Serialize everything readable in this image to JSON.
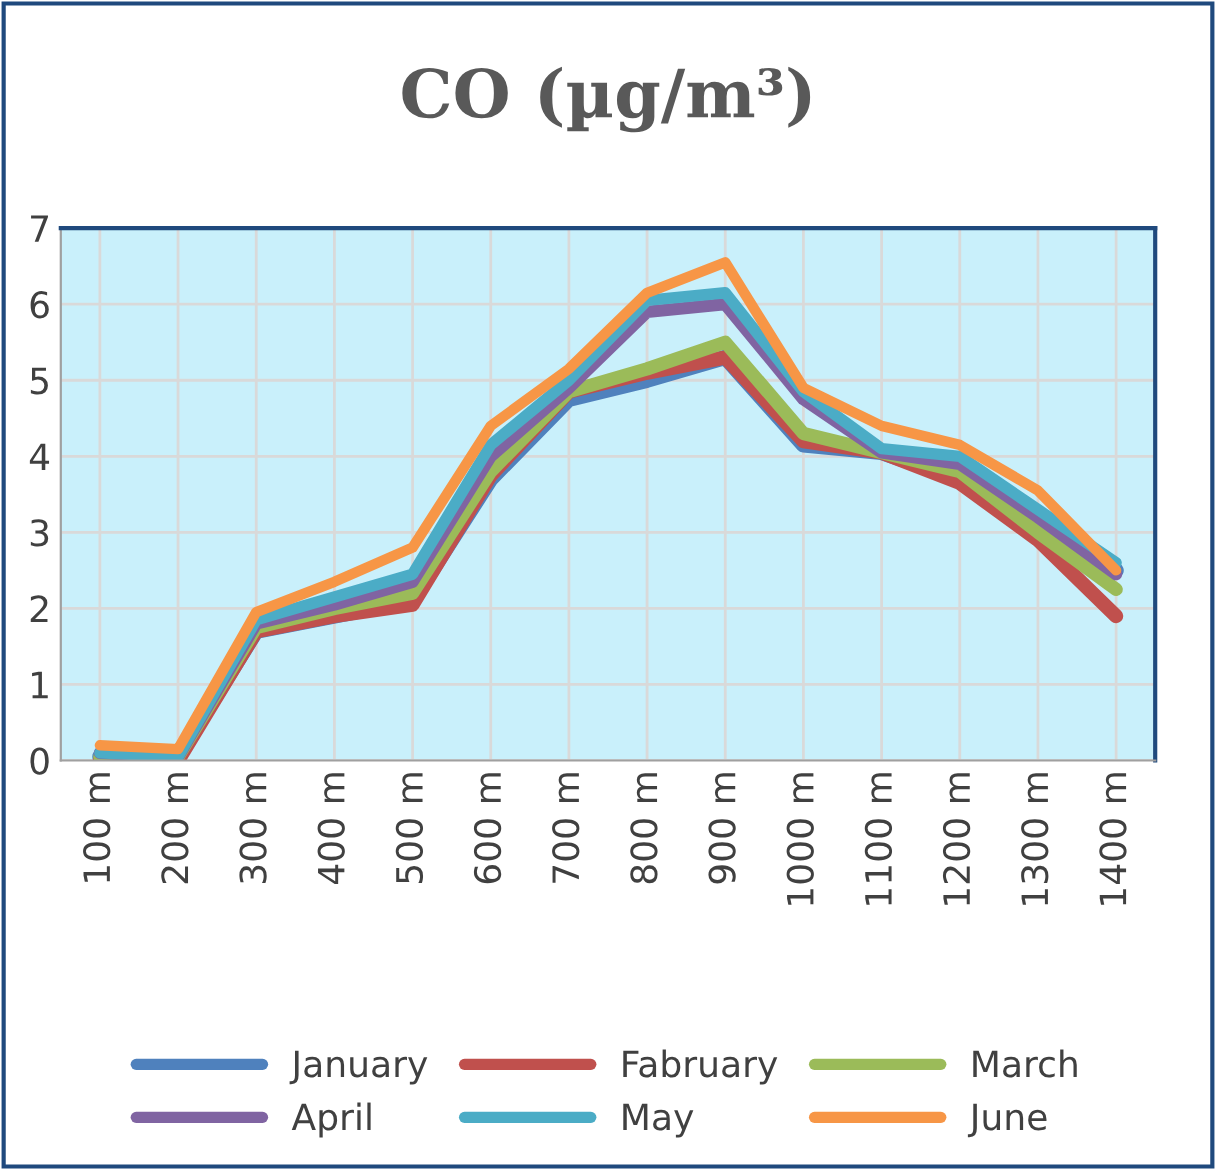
{
  "chart_data": {
    "type": "line",
    "title": "CO (µg/m³)",
    "categories": [
      "100 m",
      "200 m",
      "300 m",
      "400 m",
      "500 m",
      "600 m",
      "700 m",
      "800 m",
      "900 m",
      "1000 m",
      "1100 m",
      "1200 m",
      "1300 m",
      "1400 m"
    ],
    "series": [
      {
        "name": "January",
        "color": "#4f81bd",
        "values": [
          0.05,
          0.05,
          1.7,
          1.9,
          2.1,
          3.7,
          4.75,
          5.0,
          5.3,
          4.15,
          4.05,
          3.7,
          3.0,
          2.5
        ]
      },
      {
        "name": "Fabruary",
        "color": "#c0504d",
        "values": [
          0.0,
          0.0,
          1.7,
          1.9,
          2.05,
          3.75,
          4.85,
          5.1,
          5.3,
          4.2,
          4.05,
          3.65,
          2.9,
          1.9
        ]
      },
      {
        "name": "March",
        "color": "#9bbb59",
        "values": [
          0.05,
          0.05,
          1.75,
          2.0,
          2.2,
          3.8,
          4.85,
          5.15,
          5.5,
          4.3,
          4.05,
          3.8,
          3.0,
          2.25
        ]
      },
      {
        "name": "April",
        "color": "#8064a2",
        "values": [
          0.1,
          0.05,
          1.8,
          2.05,
          2.35,
          4.0,
          4.9,
          5.9,
          6.0,
          4.75,
          4.05,
          3.9,
          3.2,
          2.45
        ]
      },
      {
        "name": "May",
        "color": "#4bacc6",
        "values": [
          0.1,
          0.05,
          1.85,
          2.15,
          2.45,
          4.15,
          5.0,
          6.05,
          6.15,
          4.85,
          4.1,
          4.0,
          3.3,
          2.6
        ]
      },
      {
        "name": "June",
        "color": "#f79646",
        "values": [
          0.2,
          0.15,
          1.95,
          2.35,
          2.8,
          4.4,
          5.15,
          6.15,
          6.55,
          4.9,
          4.4,
          4.15,
          3.55,
          2.5
        ]
      }
    ],
    "ylim": [
      0,
      7
    ],
    "yticks": [
      0,
      1,
      2,
      3,
      4,
      5,
      6,
      7
    ],
    "grid": true,
    "legend": "bottom",
    "marker": "none",
    "line_style": "solid"
  }
}
